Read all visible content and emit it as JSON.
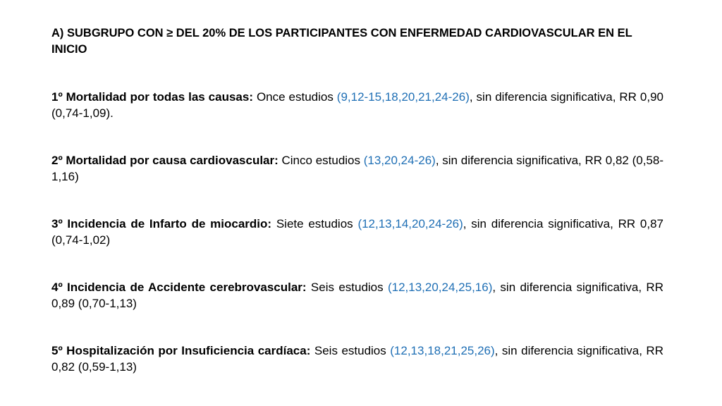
{
  "heading": "A) SUBGRUPO CON ≥ DEL 20% DE LOS PARTICIPANTES CON ENFERMEDAD CARDIOVASCULAR EN EL INICIO",
  "items": [
    {
      "lead": "1º Mortalidad por todas las causas:",
      "studies": " Once estudios ",
      "refs": "(9,12-15,18,20,21,24-26)",
      "result": ", sin diferencia significativa, RR 0,90 (0,74-1,09)."
    },
    {
      "lead": "2º Mortalidad por causa cardiovascular:",
      "studies": " Cinco estudios ",
      "refs": "(13,20,24-26)",
      "result": ", sin diferencia significativa, RR 0,82 (0,58-1,16)"
    },
    {
      "lead": "3º Incidencia de Infarto de miocardio:",
      "studies": " Siete estudios ",
      "refs": "(12,13,14,20,24-26)",
      "result": ", sin diferencia significativa, RR 0,87 (0,74-1,02)"
    },
    {
      "lead": "4º Incidencia de Accidente cerebrovascular:",
      "studies": " Seis estudios ",
      "refs": "(12,13,20,24,25,16)",
      "result": ", sin diferencia significativa, RR 0,89 (0,70-1,13)"
    },
    {
      "lead": "5º Hospitalización por Insuficiencia cardíaca:",
      "studies": " Seis estudios ",
      "refs": "(12,13,18,21,25,26)",
      "result": ", sin diferencia significativa, RR 0,82 (0,59-1,13)"
    }
  ],
  "colors": {
    "text": "#000000",
    "refs": "#1f6fb5",
    "background": "#ffffff"
  }
}
